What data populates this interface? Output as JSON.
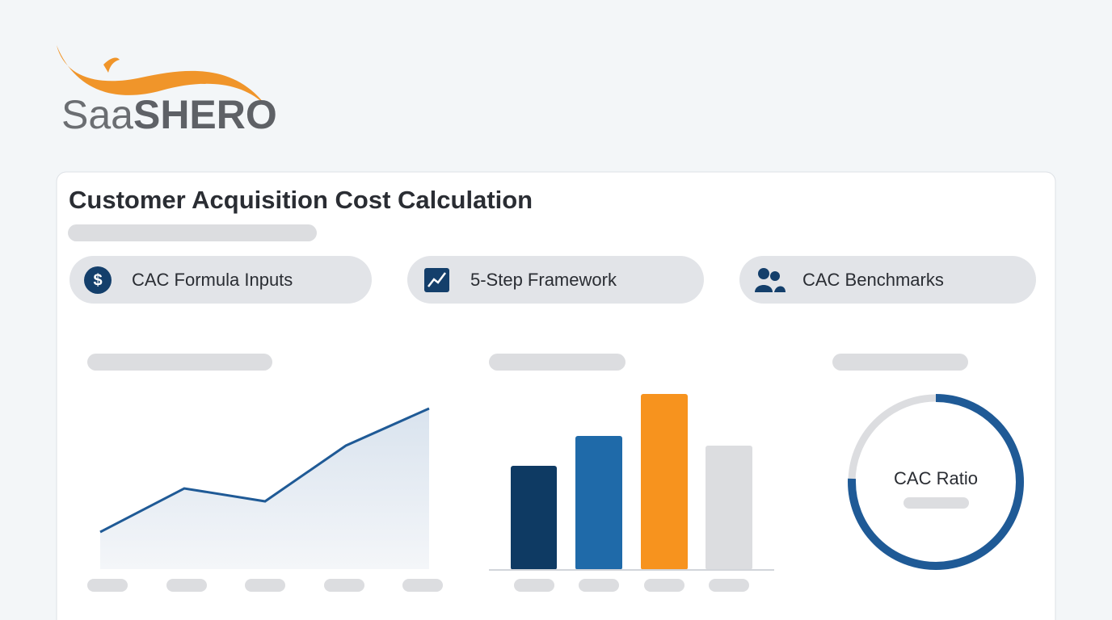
{
  "header": {
    "logo": {
      "light": "Saa",
      "bold": "SHERO"
    }
  },
  "card": {
    "title": "Customer Acquisition Cost Calculation",
    "tabs": [
      "CAC Formula Inputs",
      "5-Step Framework",
      "CAC Benchmarks"
    ],
    "donut_label": "CAC Ratio"
  }
}
